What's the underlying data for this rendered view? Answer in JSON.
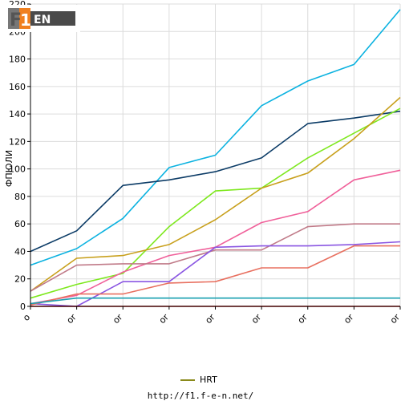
{
  "chart_data": {
    "type": "line",
    "ylabel": "ФПЮЛИ",
    "ylim": [
      0,
      220
    ],
    "yticks": [
      0,
      20,
      40,
      60,
      80,
      100,
      120,
      140,
      160,
      180,
      200,
      220
    ],
    "x": [
      0,
      1,
      2,
      3,
      4,
      5,
      6,
      7,
      8
    ],
    "xticklabels": [
      "o",
      "or",
      "or",
      "or",
      "or",
      "or",
      "or",
      "or",
      "or"
    ],
    "grid": true,
    "legend": "bottom",
    "series": [
      {
        "color": "#0bb2e0",
        "values": [
          30,
          42,
          64,
          101,
          110,
          146,
          164,
          176,
          216
        ]
      },
      {
        "color": "#0b3b66",
        "values": [
          40,
          55,
          88,
          92,
          98,
          108,
          133,
          137,
          142
        ]
      },
      {
        "color": "#7ee81e",
        "values": [
          6,
          16,
          24,
          58,
          84,
          86,
          108,
          126,
          144
        ]
      },
      {
        "name": "HRT",
        "color": "#c8a01c",
        "values": [
          11,
          35,
          37,
          45,
          63,
          86,
          97,
          122,
          152
        ]
      },
      {
        "color": "#f0609a",
        "values": [
          2,
          8,
          25,
          37,
          43,
          61,
          69,
          92,
          99
        ]
      },
      {
        "color": "#c07a88",
        "values": [
          11,
          30,
          31,
          31,
          41,
          41,
          58,
          60,
          60
        ]
      },
      {
        "color": "#8a56e2",
        "values": [
          2,
          0,
          18,
          18,
          43,
          44,
          44,
          45,
          47
        ]
      },
      {
        "color": "#e87060",
        "values": [
          1,
          9,
          9,
          17,
          18,
          28,
          28,
          44,
          44
        ]
      },
      {
        "color": "#1aa0b0",
        "values": [
          2,
          6,
          6,
          6,
          6,
          6,
          6,
          6,
          6
        ]
      },
      {
        "color": "#cc0000",
        "values": [
          0,
          0,
          0,
          0,
          0,
          0,
          0,
          0,
          0
        ]
      }
    ]
  },
  "legend_items": [
    {
      "label": "HRT",
      "color": "#8a8a1a"
    }
  ],
  "logo": {
    "text": "F1EN"
  },
  "footer": {
    "url": "http://f1.f-e-n.net/"
  }
}
